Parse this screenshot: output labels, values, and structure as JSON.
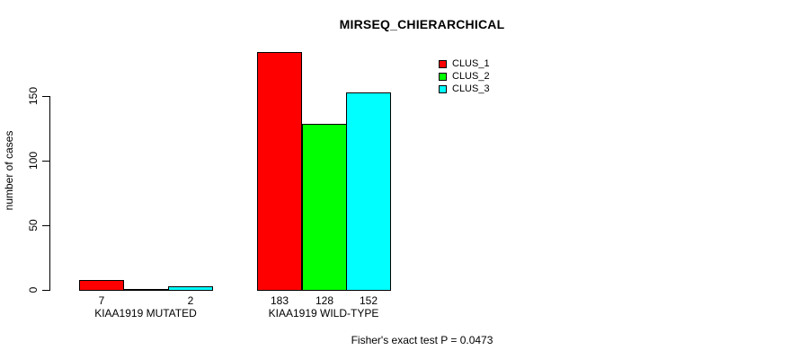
{
  "chart_data": {
    "type": "bar",
    "title": "MIRSEQ_CHIERARCHICAL",
    "ylabel": "number of cases",
    "categories": [
      "KIAA1919 MUTATED",
      "KIAA1919 WILD-TYPE"
    ],
    "series": [
      {
        "name": "CLUS_1",
        "color": "#ff0000",
        "values": [
          7,
          183
        ]
      },
      {
        "name": "CLUS_2",
        "color": "#00ff00",
        "values": [
          0,
          128
        ]
      },
      {
        "name": "CLUS_3",
        "color": "#00ffff",
        "values": [
          2,
          152
        ]
      }
    ],
    "bar_value_labels": [
      [
        "7",
        "",
        "2"
      ],
      [
        "183",
        "128",
        "152"
      ]
    ],
    "yticks": [
      0,
      50,
      100,
      150
    ],
    "ylim": [
      0,
      150
    ],
    "grid": false,
    "legend_position": "inside-top-right",
    "legend": [
      {
        "label": "CLUS_1",
        "color": "#ff0000"
      },
      {
        "label": "CLUS_2",
        "color": "#00ff00"
      },
      {
        "label": "CLUS_3",
        "color": "#00ffff"
      }
    ]
  },
  "footer": {
    "text": "Fisher's exact test P = 0.0473"
  },
  "colors": {
    "background": "#ffffff",
    "axis": "#000000",
    "bar_border": "#000000",
    "text": "#000000"
  }
}
